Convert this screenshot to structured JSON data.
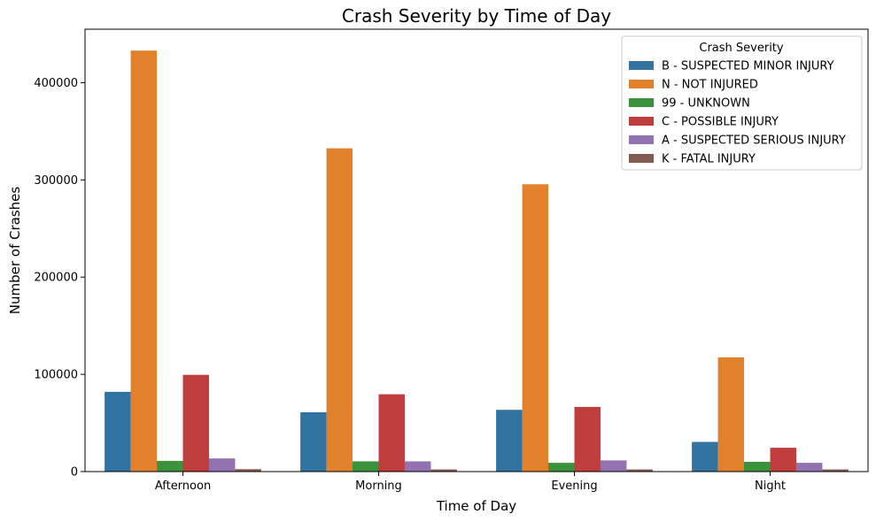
{
  "chart_data": {
    "type": "bar",
    "title": "Crash Severity by Time of Day",
    "xlabel": "Time of Day",
    "ylabel": "Number of Crashes",
    "categories": [
      "Afternoon",
      "Morning",
      "Evening",
      "Night"
    ],
    "ylim": [
      0,
      455000
    ],
    "yticks": [
      0,
      100000,
      200000,
      300000,
      400000
    ],
    "ytick_labels": [
      "0",
      "100000",
      "200000",
      "300000",
      "400000"
    ],
    "grid": false,
    "legend": {
      "title": "Crash Severity",
      "placement": "top-right"
    },
    "series": [
      {
        "name": "B - SUSPECTED MINOR INJURY",
        "color": "#3274a1",
        "values": [
          82000,
          61000,
          63500,
          30500
        ]
      },
      {
        "name": "N - NOT INJURED",
        "color": "#e1812c",
        "values": [
          433000,
          332500,
          295500,
          117500
        ]
      },
      {
        "name": "99 - UNKNOWN",
        "color": "#3a923a",
        "values": [
          11000,
          10500,
          9000,
          10000
        ]
      },
      {
        "name": "C - POSSIBLE INJURY",
        "color": "#c03d3e",
        "values": [
          99500,
          79500,
          66500,
          24500
        ]
      },
      {
        "name": "A - SUSPECTED SERIOUS INJURY",
        "color": "#9372b2",
        "values": [
          13500,
          10500,
          11500,
          9000
        ]
      },
      {
        "name": "K - FATAL INJURY",
        "color": "#845b53",
        "values": [
          2500,
          2200,
          2200,
          2200
        ]
      }
    ]
  }
}
